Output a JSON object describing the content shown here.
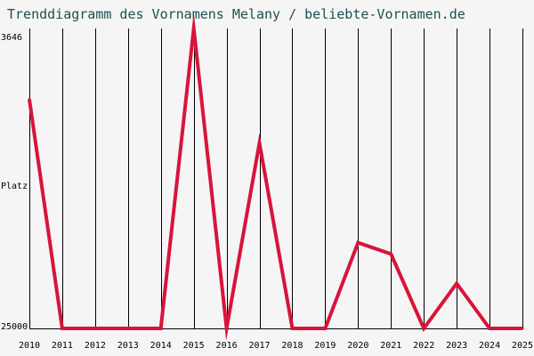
{
  "chart_data": {
    "type": "line",
    "title": "Trenddiagramm des Vornamens Melany / beliebte-Vornamen.de",
    "ylabel": "Platz",
    "y_top_label": "3646",
    "y_bottom_label": "25000",
    "ylim": [
      3646,
      25000
    ],
    "y_inverted": true,
    "grid": "vertical",
    "line_color": "#d8143a",
    "x": [
      "2010",
      "2011",
      "2012",
      "2013",
      "2014",
      "2015",
      "2016",
      "2017",
      "2018",
      "2019",
      "2020",
      "2021",
      "2022",
      "2023",
      "2024",
      "2025"
    ],
    "series": [
      {
        "values": [
          8700,
          25000,
          25000,
          25000,
          25000,
          3646,
          25000,
          11800,
          25000,
          25000,
          18900,
          19700,
          25000,
          21800,
          25000,
          25000
        ]
      }
    ]
  }
}
